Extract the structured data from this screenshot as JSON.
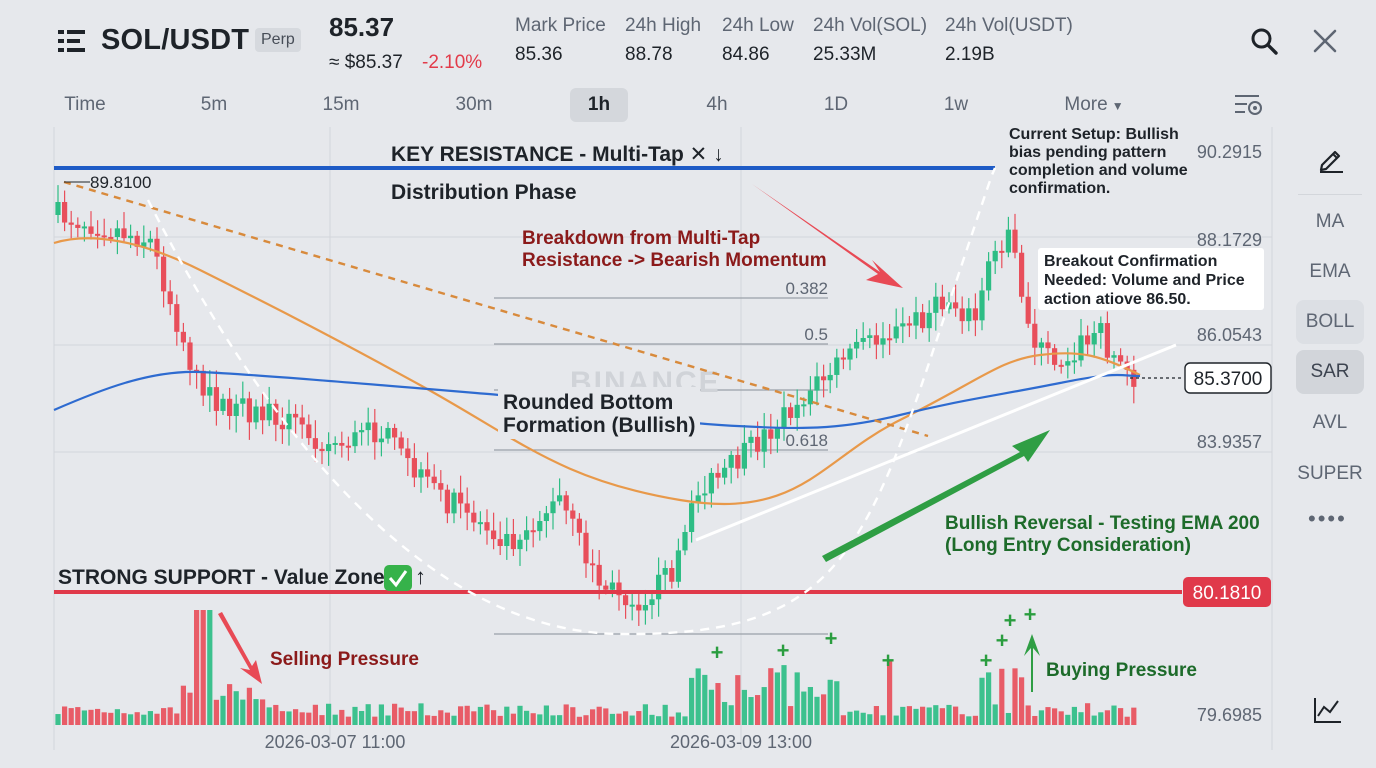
{
  "header": {
    "pair": "SOL/USDT",
    "contract_tag": "Perp",
    "last_price": "85.37",
    "usd_price": "≈ $85.37",
    "change_pct": "-2.10%",
    "stats": [
      {
        "label": "Mark Price",
        "value": "85.36"
      },
      {
        "label": "24h High",
        "value": "88.78"
      },
      {
        "label": "24h Low",
        "value": "84.86"
      },
      {
        "label": "24h Vol(SOL)",
        "value": "25.33M"
      },
      {
        "label": "24h Vol(USDT)",
        "value": "2.19B"
      }
    ],
    "icons": [
      "menu-icon",
      "search-icon",
      "close-icon"
    ]
  },
  "timeframes": {
    "items": [
      "Time",
      "5m",
      "15m",
      "30m",
      "1h",
      "4h",
      "1D",
      "1w",
      "More"
    ],
    "active": "1h",
    "settings_icon": "chart-settings-icon"
  },
  "chart": {
    "watermark": "BINANCE",
    "price_axis": [
      "90.2915",
      "88.1729",
      "86.0543",
      "83.9357",
      "79.6985"
    ],
    "current_price_label": "85.3700",
    "support_price_label": "80.1810",
    "high_marker": "89.8100",
    "time_axis": [
      "2026-03-07 11:00",
      "2026-03-09 13:00"
    ],
    "fib_labels": [
      "0.382",
      "0.5",
      "0.618"
    ],
    "annotations": {
      "resistance": "KEY RESISTANCE - Multi-Tap ✕ ↓",
      "distribution": "Distribution Phase",
      "breakdown_1": "Breakdown from Multi-Tap",
      "breakdown_2": "Resistance -> Bearish Momentum",
      "rounded_1": "Rounded Bottom",
      "rounded_2": "Formation (Bullish)",
      "support": "STRONG SUPPORT - Value Zone",
      "selling": "Selling Pressure",
      "buying": "Buying Pressure",
      "reversal_1": "Bullish Reversal - Testing EMA 200",
      "reversal_2": "(Long Entry Consideration)",
      "setup_1": "Current Setup: Bullish",
      "setup_2": "bias pending pattern",
      "setup_3": "completion and volume",
      "setup_4": "confirmation.",
      "breakout_1": "Breakout Confirmation",
      "breakout_2": "Needed: Volume and Price",
      "breakout_3": "action atiove 86.50."
    },
    "colors": {
      "up": "#2ebd85",
      "down": "#e84f5b",
      "resistance_line": "#1e5bc6",
      "support_line": "#e0394a",
      "ema_orange": "#e8994a",
      "ema_blue": "#2e6bd0",
      "annotation_red": "#8b1a1a",
      "annotation_green": "#1d6b2a"
    }
  },
  "sidebar": {
    "items": [
      "MA",
      "EMA",
      "BOLL",
      "SAR",
      "AVL",
      "SUPER"
    ],
    "active": "SAR",
    "highlighted": "BOLL",
    "icons": [
      "pencil-icon",
      "more-dots-icon",
      "indicator-chart-icon"
    ]
  }
}
